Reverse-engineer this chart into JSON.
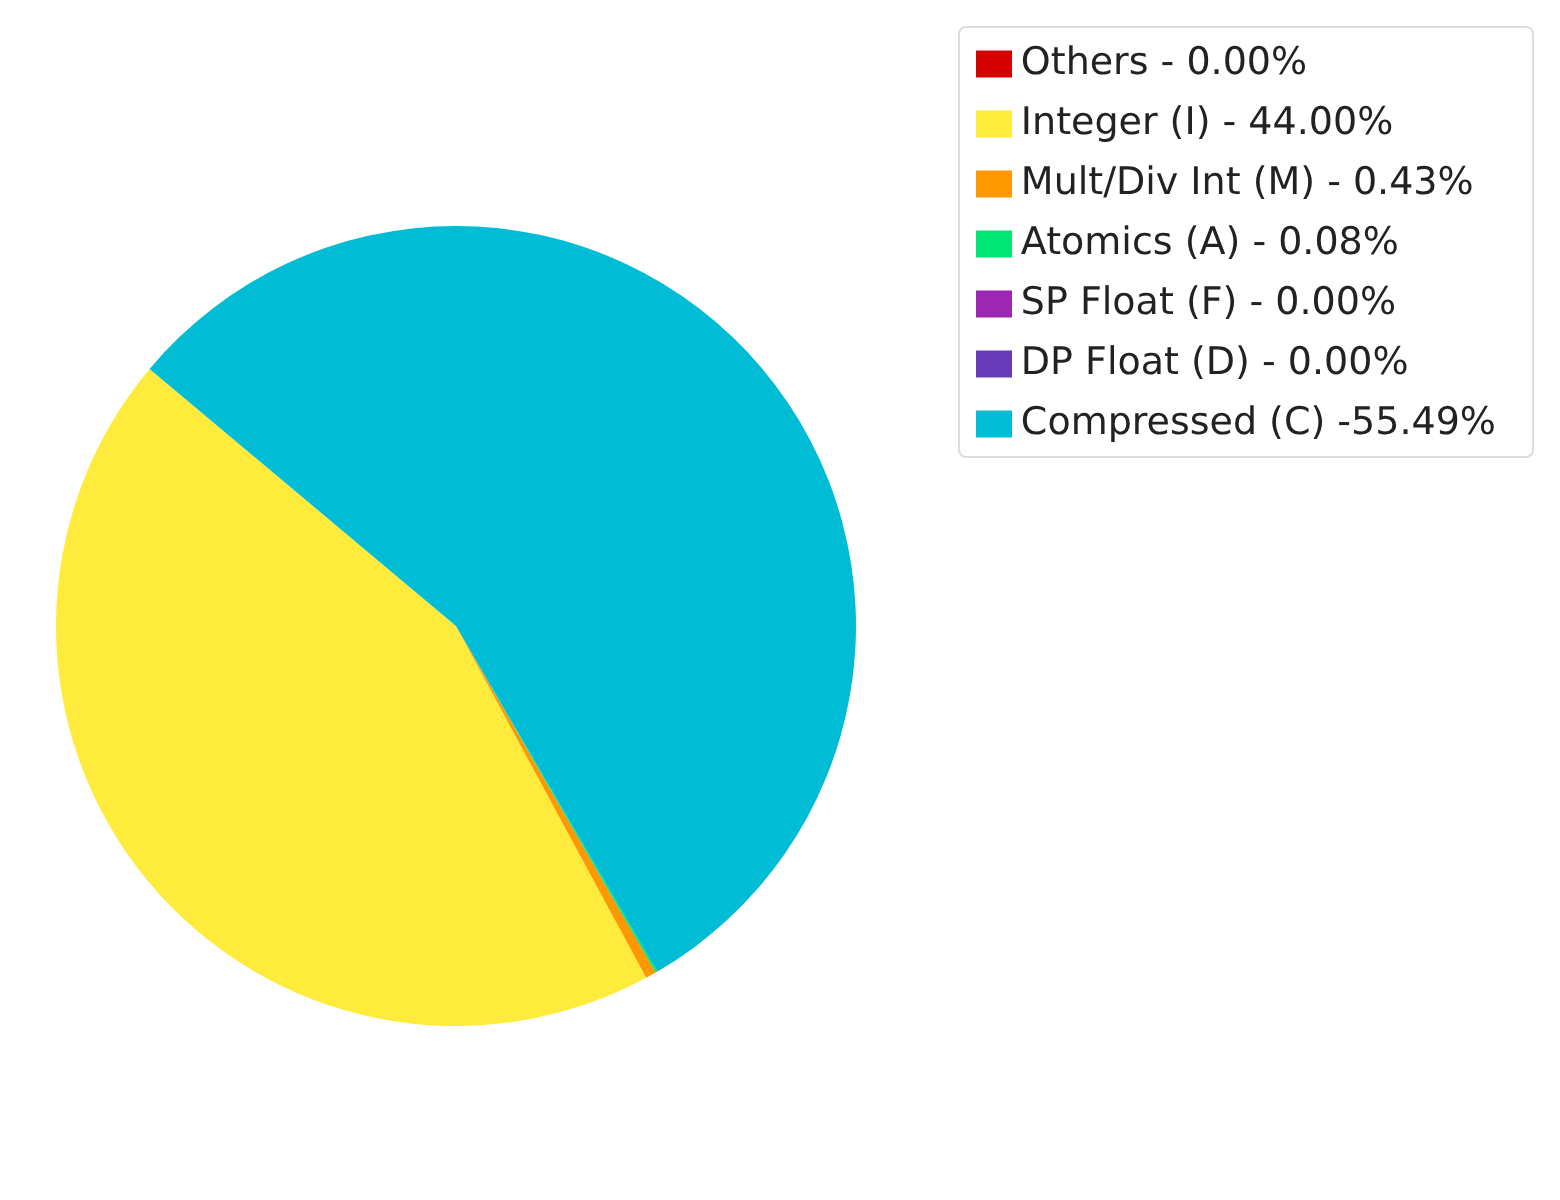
{
  "chart_data": {
    "type": "pie",
    "categories": [
      "Others - 0.00%",
      "Integer (I) - 44.00%",
      "Mult/Div Int (M) - 0.43%",
      "Atomics (A) - 0.08%",
      "SP Float (F) - 0.00%",
      "DP Float (D) - 0.00%",
      "Compressed (C) -55.49%"
    ],
    "values": [
      0,
      44.0,
      0.43,
      0.08,
      0,
      0,
      55.49
    ],
    "colors": [
      "#d50000",
      "#ffeb3b",
      "#ff9800",
      "#00e676",
      "#9c27b0",
      "#673ab7",
      "#00bcd4"
    ],
    "legend": "top right"
  }
}
